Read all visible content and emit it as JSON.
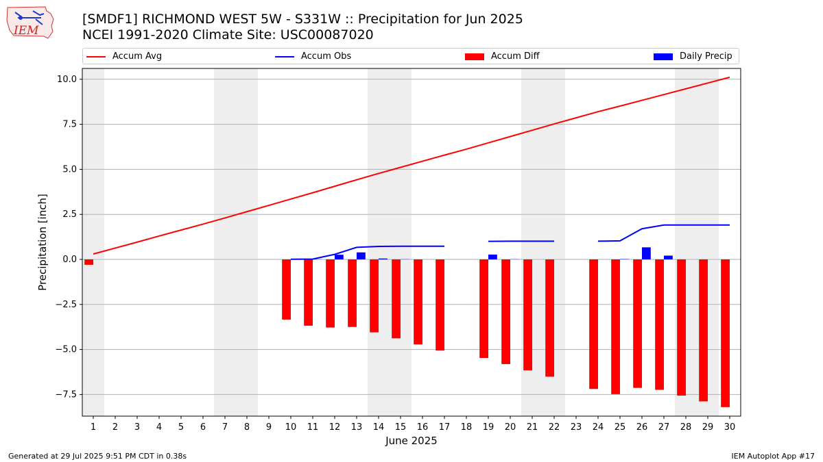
{
  "header": {
    "title_line1": "[SMDF1] RICHMOND WEST 5W - S331W :: Precipitation for Jun 2025",
    "title_line2": "NCEI 1991-2020 Climate Site: USC00087020",
    "logo_text": "IEM"
  },
  "footer": {
    "left": "Generated at 29 Jul 2025 9:51 PM CDT in 0.38s",
    "right": "IEM Autoplot App #17"
  },
  "colors": {
    "accum_avg": "#ff0000",
    "accum_obs": "#0000ff",
    "accum_diff": "#ff0000",
    "daily_precip": "#0000ff",
    "weekend_shade": "#eeeeee",
    "grid": "#b0b0b0"
  },
  "chart_data": {
    "type": "bar",
    "xlabel": "June 2025",
    "ylabel": "Precipitation [inch]",
    "ylim": [
      -8.7,
      10.6
    ],
    "yticks": [
      -7.5,
      -5.0,
      -2.5,
      0.0,
      2.5,
      5.0,
      7.5,
      10.0
    ],
    "ytick_labels": [
      "−7.5",
      "−5.0",
      "−2.5",
      "0.0",
      "2.5",
      "5.0",
      "7.5",
      "10.0"
    ],
    "x": [
      1,
      2,
      3,
      4,
      5,
      6,
      7,
      8,
      9,
      10,
      11,
      12,
      13,
      14,
      15,
      16,
      17,
      18,
      19,
      20,
      21,
      22,
      23,
      24,
      25,
      26,
      27,
      28,
      29,
      30
    ],
    "weekends": [
      1,
      7,
      8,
      14,
      15,
      21,
      22,
      28,
      29
    ],
    "grid": "horizontal",
    "legend": [
      "Accum Avg",
      "Accum Obs",
      "Accum Diff",
      "Daily Precip"
    ],
    "legend_placement": "top",
    "series": [
      {
        "name": "Accum Avg",
        "kind": "line",
        "values": [
          0.3,
          0.63,
          0.96,
          1.3,
          1.63,
          1.96,
          2.3,
          2.65,
          3.0,
          3.35,
          3.7,
          4.06,
          4.42,
          4.77,
          5.11,
          5.45,
          5.79,
          6.12,
          6.47,
          6.82,
          7.17,
          7.52,
          7.86,
          8.2,
          8.51,
          8.83,
          9.15,
          9.47,
          9.79,
          10.11
        ]
      },
      {
        "name": "Accum Obs",
        "kind": "line",
        "values": [
          null,
          null,
          null,
          null,
          null,
          null,
          null,
          null,
          null,
          0.01,
          0.02,
          0.28,
          0.67,
          0.72,
          0.73,
          0.73,
          0.73,
          null,
          1.0,
          1.01,
          1.01,
          1.01,
          null,
          1.01,
          1.03,
          1.7,
          1.91,
          1.91,
          1.91,
          1.91
        ]
      },
      {
        "name": "Accum Diff",
        "kind": "bar",
        "values": [
          -0.3,
          null,
          null,
          null,
          null,
          null,
          null,
          null,
          null,
          -3.34,
          -3.68,
          -3.78,
          -3.75,
          -4.05,
          -4.38,
          -4.72,
          -5.06,
          null,
          -5.47,
          -5.81,
          -6.16,
          -6.51,
          null,
          -7.19,
          -7.48,
          -7.13,
          -7.24,
          -7.56,
          -7.88,
          -8.2
        ]
      },
      {
        "name": "Daily Precip",
        "kind": "bar",
        "values": [
          null,
          null,
          null,
          null,
          null,
          null,
          null,
          null,
          null,
          0.01,
          0.01,
          0.26,
          0.39,
          0.05,
          0.01,
          0,
          0,
          null,
          0.27,
          0.01,
          0,
          0,
          null,
          0,
          0.02,
          0.67,
          0.21,
          0,
          0,
          0
        ]
      }
    ]
  }
}
